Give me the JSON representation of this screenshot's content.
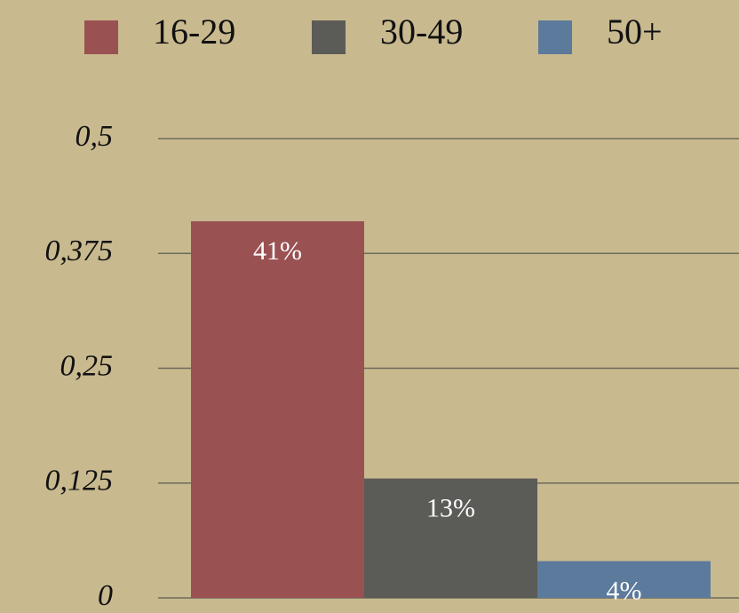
{
  "chart_data": {
    "type": "bar",
    "categories": [
      null
    ],
    "series": [
      {
        "name": "16-29",
        "color": "#9a5152",
        "values": [
          0.41
        ],
        "value_labels": [
          "41%"
        ]
      },
      {
        "name": "30-49",
        "color": "#5b5b58",
        "values": [
          0.13
        ],
        "value_labels": [
          "13%"
        ]
      },
      {
        "name": "50+",
        "color": "#5b7a9c",
        "values": [
          0.04
        ],
        "value_labels": [
          "4%"
        ]
      }
    ],
    "ylim": [
      0,
      0.5
    ],
    "yticks": [
      0,
      {
        "value": 0.125,
        "label": "0,125"
      },
      {
        "value": 0.25,
        "label": "0,25"
      },
      {
        "value": 0.375,
        "label": "0,375"
      },
      {
        "value": 0.5,
        "label": "0,5"
      }
    ],
    "grid": true,
    "legend": "top"
  }
}
